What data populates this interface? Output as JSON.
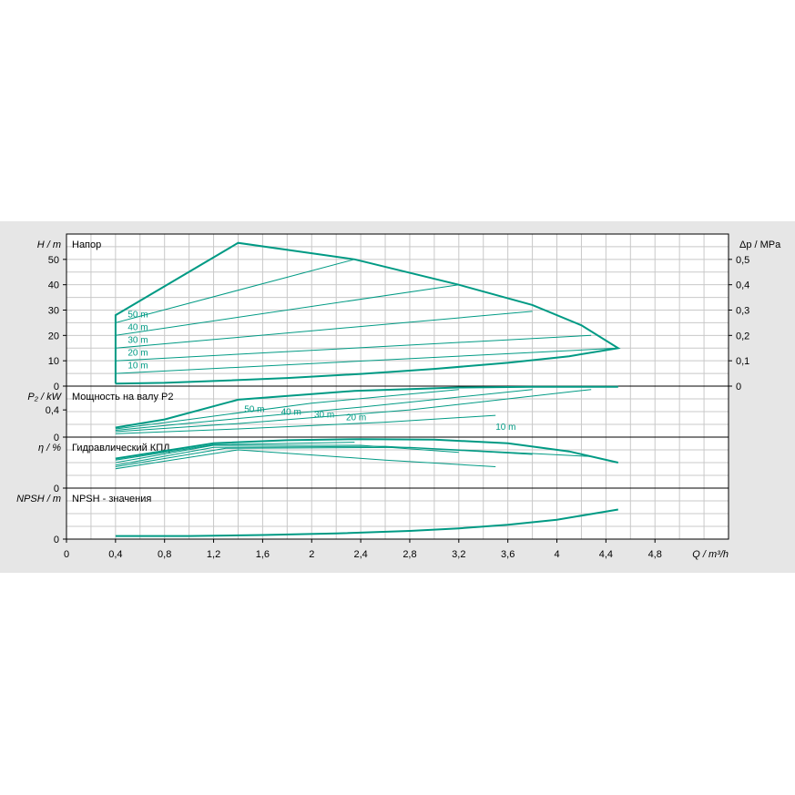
{
  "colors": {
    "background": "#e6e6e6",
    "plot": "#ffffff",
    "grid": "#c8c8c8",
    "curve": "#009a84",
    "text": "#000000"
  },
  "chart_data": [
    {
      "type": "line",
      "panel": "head",
      "label": "Напор",
      "ylabel": "H / m",
      "ylabel_right": "Δp / MPa",
      "ylim": [
        0,
        60
      ],
      "yticks": [
        0,
        10,
        20,
        30,
        40,
        50
      ],
      "yticks_right": [
        "0",
        "0,1",
        "0,2",
        "0,3",
        "0,4",
        "0,5"
      ],
      "curves": [
        {
          "name": "10 m",
          "label_at": [
            0.5,
            8.5
          ],
          "x": [
            0.4,
            4.5
          ],
          "y": [
            5,
            15
          ]
        },
        {
          "name": "20 m",
          "label_at": [
            0.5,
            13.5
          ],
          "x": [
            0.4,
            4.28
          ],
          "y": [
            10,
            20
          ]
        },
        {
          "name": "30 m",
          "label_at": [
            0.5,
            18.5
          ],
          "x": [
            0.4,
            3.8
          ],
          "y": [
            15,
            29.5
          ]
        },
        {
          "name": "40 m",
          "label_at": [
            0.5,
            23.5
          ],
          "x": [
            0.4,
            3.2
          ],
          "y": [
            20,
            40
          ]
        },
        {
          "name": "50 m",
          "label_at": [
            0.5,
            28.5
          ],
          "x": [
            0.4,
            2.35
          ],
          "y": [
            25,
            50
          ]
        }
      ],
      "envelope": {
        "x": [
          0.4,
          0.4,
          1.4,
          2.35,
          3.2,
          3.8,
          4.2,
          4.5,
          4.1,
          3.6,
          3.0,
          2.4,
          1.8,
          1.2,
          0.8,
          0.4
        ],
        "y": [
          1,
          28,
          56.5,
          50,
          40,
          32,
          24,
          15,
          11.8,
          9.2,
          6.8,
          4.8,
          3.2,
          2.0,
          1.3,
          1
        ]
      }
    },
    {
      "type": "line",
      "panel": "power",
      "label": "Мощность на валу P2",
      "ylabel": "P₂ / kW",
      "ylim": [
        0,
        0.75
      ],
      "yticks": [
        0,
        0.4
      ],
      "ytick_labels": [
        "0",
        "0,4"
      ],
      "curves": [
        {
          "name": "50 m",
          "label_at": [
            1.45,
            0.42
          ],
          "x": [
            0.4,
            0.8,
            1.4,
            2.35
          ],
          "y": [
            0.14,
            0.26,
            0.55,
            0.68
          ]
        },
        {
          "name": "40 m",
          "label_at": [
            1.75,
            0.38
          ],
          "x": [
            0.4,
            1.0,
            2.0,
            3.2
          ],
          "y": [
            0.12,
            0.26,
            0.5,
            0.7
          ]
        },
        {
          "name": "30 m",
          "label_at": [
            2.02,
            0.34
          ],
          "x": [
            0.4,
            1.2,
            2.4,
            3.8
          ],
          "y": [
            0.1,
            0.24,
            0.44,
            0.7
          ]
        },
        {
          "name": "20 m",
          "label_at": [
            2.28,
            0.3
          ],
          "x": [
            0.4,
            1.4,
            2.8,
            4.28
          ],
          "y": [
            0.08,
            0.2,
            0.4,
            0.7
          ]
        },
        {
          "name": "10 m",
          "label_at": [
            3.5,
            0.16
          ],
          "x": [
            0.4,
            1.4,
            2.6,
            3.5
          ],
          "y": [
            0.05,
            0.12,
            0.22,
            0.32
          ]
        }
      ],
      "envelope": {
        "x": [
          0.4,
          0.8,
          1.4,
          2.35,
          3.2,
          3.8,
          4.28,
          4.5
        ],
        "y": [
          0.14,
          0.26,
          0.55,
          0.68,
          0.73,
          0.74,
          0.74,
          0.74
        ]
      }
    },
    {
      "type": "line",
      "panel": "efficiency",
      "label": "Гидравлический КПД",
      "ylabel": "η / %",
      "ylim": [
        0,
        1
      ],
      "yticks": [
        0
      ],
      "ytick_labels": [
        "0"
      ],
      "curves": [
        {
          "name": "50 m",
          "x": [
            0.4,
            1.2,
            2.35
          ],
          "y": [
            0.55,
            0.85,
            0.9
          ]
        },
        {
          "name": "40 m",
          "x": [
            0.4,
            1.2,
            2.4,
            3.2
          ],
          "y": [
            0.5,
            0.84,
            0.84,
            0.7
          ]
        },
        {
          "name": "30 m",
          "x": [
            0.4,
            1.2,
            2.6,
            3.8
          ],
          "y": [
            0.45,
            0.8,
            0.82,
            0.66
          ]
        },
        {
          "name": "20 m",
          "x": [
            0.4,
            1.3,
            2.8,
            4.28
          ],
          "y": [
            0.42,
            0.78,
            0.8,
            0.62
          ]
        },
        {
          "name": "10 m",
          "x": [
            0.4,
            1.4,
            2.6,
            3.5
          ],
          "y": [
            0.38,
            0.75,
            0.55,
            0.42
          ]
        }
      ],
      "envelope": {
        "x": [
          0.4,
          1.2,
          1.8,
          2.4,
          3.0,
          3.6,
          4.1,
          4.5
        ],
        "y": [
          0.58,
          0.88,
          0.94,
          0.96,
          0.95,
          0.88,
          0.72,
          0.5
        ]
      }
    },
    {
      "type": "line",
      "panel": "npsh",
      "label": "NPSH - значения",
      "ylabel": "NPSH / m",
      "ylim": [
        0,
        1
      ],
      "yticks": [
        0
      ],
      "ytick_labels": [
        "0"
      ],
      "curves": [],
      "envelope": {
        "x": [
          0.4,
          1.0,
          1.6,
          2.2,
          2.8,
          3.2,
          3.6,
          4.0,
          4.3,
          4.5
        ],
        "y": [
          0.06,
          0.06,
          0.08,
          0.11,
          0.16,
          0.21,
          0.28,
          0.38,
          0.5,
          0.58
        ]
      }
    }
  ],
  "x_axis": {
    "label": "Q / m³/h",
    "xlim": [
      0,
      5.4
    ],
    "ticks": [
      0,
      0.4,
      0.8,
      1.2,
      1.6,
      2,
      2.4,
      2.8,
      3.2,
      3.6,
      4,
      4.4,
      4.8
    ],
    "tick_labels": [
      "0",
      "0,4",
      "0,8",
      "1,2",
      "1,6",
      "2",
      "2,4",
      "2,8",
      "3,2",
      "3,6",
      "4",
      "4,4",
      "4,8"
    ]
  }
}
